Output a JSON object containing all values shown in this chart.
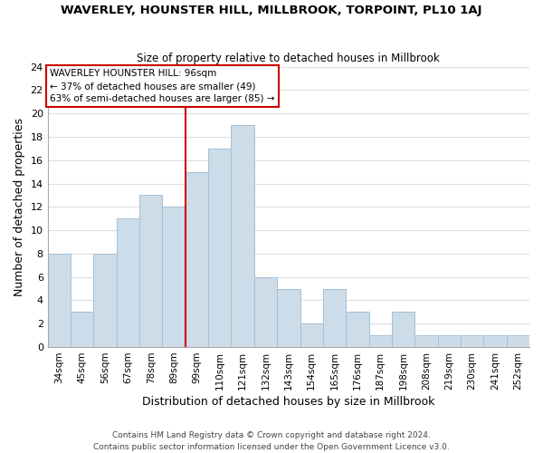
{
  "title": "WAVERLEY, HOUNSTER HILL, MILLBROOK, TORPOINT, PL10 1AJ",
  "subtitle": "Size of property relative to detached houses in Millbrook",
  "xlabel": "Distribution of detached houses by size in Millbrook",
  "ylabel": "Number of detached properties",
  "bar_color": "#ccdce8",
  "bar_edge_color": "#a8c0d4",
  "bins": [
    "34sqm",
    "45sqm",
    "56sqm",
    "67sqm",
    "78sqm",
    "89sqm",
    "99sqm",
    "110sqm",
    "121sqm",
    "132sqm",
    "143sqm",
    "154sqm",
    "165sqm",
    "176sqm",
    "187sqm",
    "198sqm",
    "208sqm",
    "219sqm",
    "230sqm",
    "241sqm",
    "252sqm"
  ],
  "counts": [
    8,
    3,
    8,
    11,
    13,
    12,
    15,
    17,
    19,
    6,
    5,
    2,
    5,
    3,
    1,
    3,
    1,
    1,
    1,
    1,
    1
  ],
  "vline_index": 6.0,
  "vline_color": "#cc0000",
  "ylim": [
    0,
    24
  ],
  "yticks": [
    0,
    2,
    4,
    6,
    8,
    10,
    12,
    14,
    16,
    18,
    20,
    22,
    24
  ],
  "annotation_title": "WAVERLEY HOUNSTER HILL: 96sqm",
  "annotation_line1": "← 37% of detached houses are smaller (49)",
  "annotation_line2": "63% of semi-detached houses are larger (85) →",
  "annotation_box_edge": "#cc0000",
  "footer1": "Contains HM Land Registry data © Crown copyright and database right 2024.",
  "footer2": "Contains public sector information licensed under the Open Government Licence v3.0.",
  "grid_color": "#dddddd",
  "background_color": "#ffffff"
}
